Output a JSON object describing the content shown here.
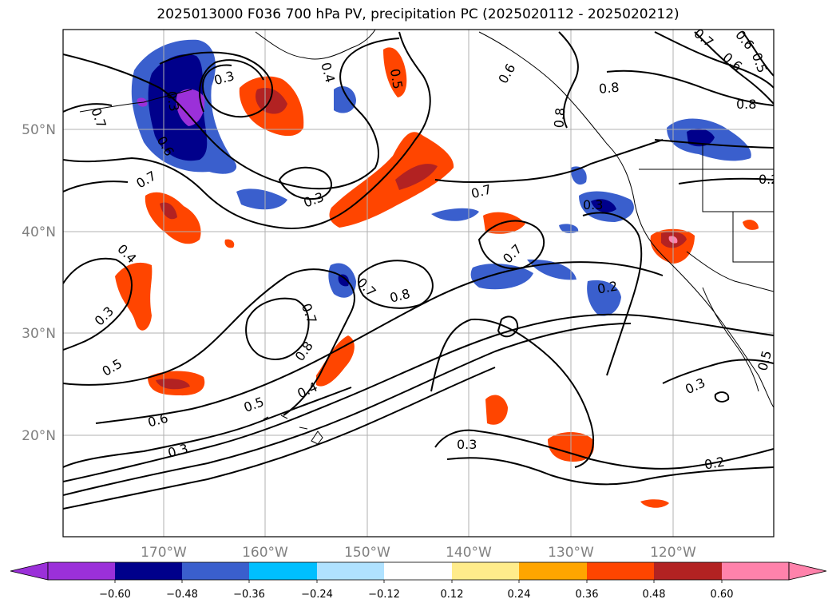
{
  "title": "2025013000 F036 700 hPa PV, precipitation PC (2025020112 - 2025020212)",
  "longitude_labels": [
    "170°W",
    "160°W",
    "150°W",
    "140°W",
    "130°W",
    "120°W"
  ],
  "latitude_labels": [
    "50°N",
    "40°N",
    "30°N",
    "20°N"
  ],
  "colorbar": {
    "tick_labels": [
      "−0.60",
      "−0.48",
      "−0.36",
      "−0.24",
      "−0.12",
      "0.12",
      "0.24",
      "0.36",
      "0.48",
      "0.60"
    ],
    "colors": [
      "#9b30d9",
      "#00008b",
      "#3a5fcd",
      "#00bfff",
      "#b0e2ff",
      "#ffffff",
      "#ffec8b",
      "#ffa500",
      "#ff4500",
      "#b22222",
      "#ff82ab"
    ]
  },
  "contour_labels": [
    "0.7",
    "0.3",
    "0.6",
    "0.7",
    "0.4",
    "0.3",
    "0.5",
    "0.6",
    "0.3",
    "0.5",
    "0.4",
    "0.7",
    "0.8",
    "0.7",
    "0.8",
    "0.3",
    "0.4",
    "0.5",
    "0.3",
    "0.7",
    "0.6",
    "0.8",
    "0.8",
    "0.7",
    "0.3",
    "0.2",
    "0.3",
    "0.2",
    "0.6",
    "0.7",
    "0.6",
    "0.5",
    "0.8",
    "0.5",
    "0.3",
    "0.2"
  ],
  "colors": {
    "contour": "#000000",
    "grid": "#b0b0b0",
    "axis_label": "#808080"
  }
}
